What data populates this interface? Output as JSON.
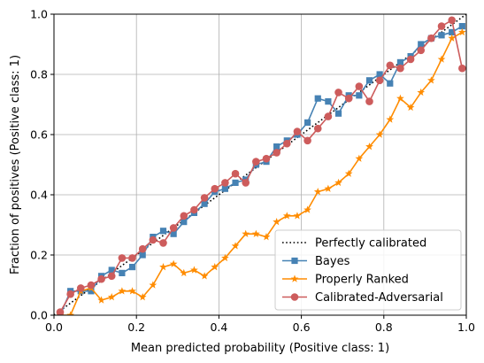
{
  "chart_data": {
    "type": "line",
    "title": "",
    "xlabel": "Mean predicted probability (Positive class: 1)",
    "ylabel": "Fraction of positives (Positive class: 1)",
    "xlim": [
      0,
      1
    ],
    "ylim": [
      0,
      1
    ],
    "xticks": [
      "0.0",
      "0.2",
      "0.4",
      "0.6",
      "0.8",
      "1.0"
    ],
    "yticks": [
      "0.0",
      "0.2",
      "0.4",
      "0.6",
      "0.8",
      "1.0"
    ],
    "grid": true,
    "legend_position": "bottom-right",
    "series": [
      {
        "name": "Perfectly calibrated",
        "color": "#000000",
        "style": "dotted",
        "marker": "none",
        "x": [
          0,
          1
        ],
        "y": [
          0,
          1
        ]
      },
      {
        "name": "Bayes",
        "color": "#4682b4",
        "style": "solid",
        "marker": "square",
        "x": [
          0.015,
          0.04,
          0.065,
          0.09,
          0.115,
          0.14,
          0.165,
          0.19,
          0.215,
          0.24,
          0.265,
          0.29,
          0.315,
          0.34,
          0.365,
          0.39,
          0.415,
          0.44,
          0.465,
          0.49,
          0.515,
          0.54,
          0.565,
          0.59,
          0.615,
          0.64,
          0.665,
          0.69,
          0.715,
          0.74,
          0.765,
          0.79,
          0.815,
          0.84,
          0.865,
          0.89,
          0.915,
          0.94,
          0.965,
          0.99
        ],
        "y": [
          0.0,
          0.08,
          0.08,
          0.08,
          0.13,
          0.15,
          0.14,
          0.16,
          0.2,
          0.26,
          0.28,
          0.27,
          0.31,
          0.34,
          0.37,
          0.41,
          0.42,
          0.44,
          0.45,
          0.5,
          0.51,
          0.56,
          0.58,
          0.6,
          0.64,
          0.72,
          0.71,
          0.67,
          0.73,
          0.73,
          0.78,
          0.8,
          0.77,
          0.84,
          0.86,
          0.9,
          0.92,
          0.93,
          0.94,
          0.96
        ]
      },
      {
        "name": "Properly Ranked",
        "color": "#ff8c00",
        "style": "solid",
        "marker": "star",
        "x": [
          0.015,
          0.04,
          0.065,
          0.09,
          0.115,
          0.14,
          0.165,
          0.19,
          0.215,
          0.24,
          0.265,
          0.29,
          0.315,
          0.34,
          0.365,
          0.39,
          0.415,
          0.44,
          0.465,
          0.49,
          0.515,
          0.54,
          0.565,
          0.59,
          0.615,
          0.64,
          0.665,
          0.69,
          0.715,
          0.74,
          0.765,
          0.79,
          0.815,
          0.84,
          0.865,
          0.89,
          0.915,
          0.94,
          0.965,
          0.99
        ],
        "y": [
          0.0,
          0.0,
          0.08,
          0.09,
          0.05,
          0.06,
          0.08,
          0.08,
          0.06,
          0.1,
          0.16,
          0.17,
          0.14,
          0.15,
          0.13,
          0.16,
          0.19,
          0.23,
          0.27,
          0.27,
          0.26,
          0.31,
          0.33,
          0.33,
          0.35,
          0.41,
          0.42,
          0.44,
          0.47,
          0.52,
          0.56,
          0.6,
          0.65,
          0.72,
          0.69,
          0.74,
          0.78,
          0.85,
          0.92,
          0.94
        ]
      },
      {
        "name": "Calibrated-Adversarial",
        "color": "#cd5c5c",
        "style": "solid",
        "marker": "circle",
        "x": [
          0.015,
          0.04,
          0.065,
          0.09,
          0.115,
          0.14,
          0.165,
          0.19,
          0.215,
          0.24,
          0.265,
          0.29,
          0.315,
          0.34,
          0.365,
          0.39,
          0.415,
          0.44,
          0.465,
          0.49,
          0.515,
          0.54,
          0.565,
          0.59,
          0.615,
          0.64,
          0.665,
          0.69,
          0.715,
          0.74,
          0.765,
          0.79,
          0.815,
          0.84,
          0.865,
          0.89,
          0.915,
          0.94,
          0.965,
          0.99
        ],
        "y": [
          0.01,
          0.07,
          0.09,
          0.1,
          0.12,
          0.13,
          0.19,
          0.19,
          0.22,
          0.25,
          0.24,
          0.29,
          0.33,
          0.35,
          0.39,
          0.42,
          0.44,
          0.47,
          0.44,
          0.51,
          0.52,
          0.54,
          0.57,
          0.61,
          0.58,
          0.62,
          0.66,
          0.74,
          0.72,
          0.76,
          0.71,
          0.78,
          0.83,
          0.82,
          0.85,
          0.88,
          0.92,
          0.96,
          0.98,
          0.82
        ]
      }
    ]
  }
}
